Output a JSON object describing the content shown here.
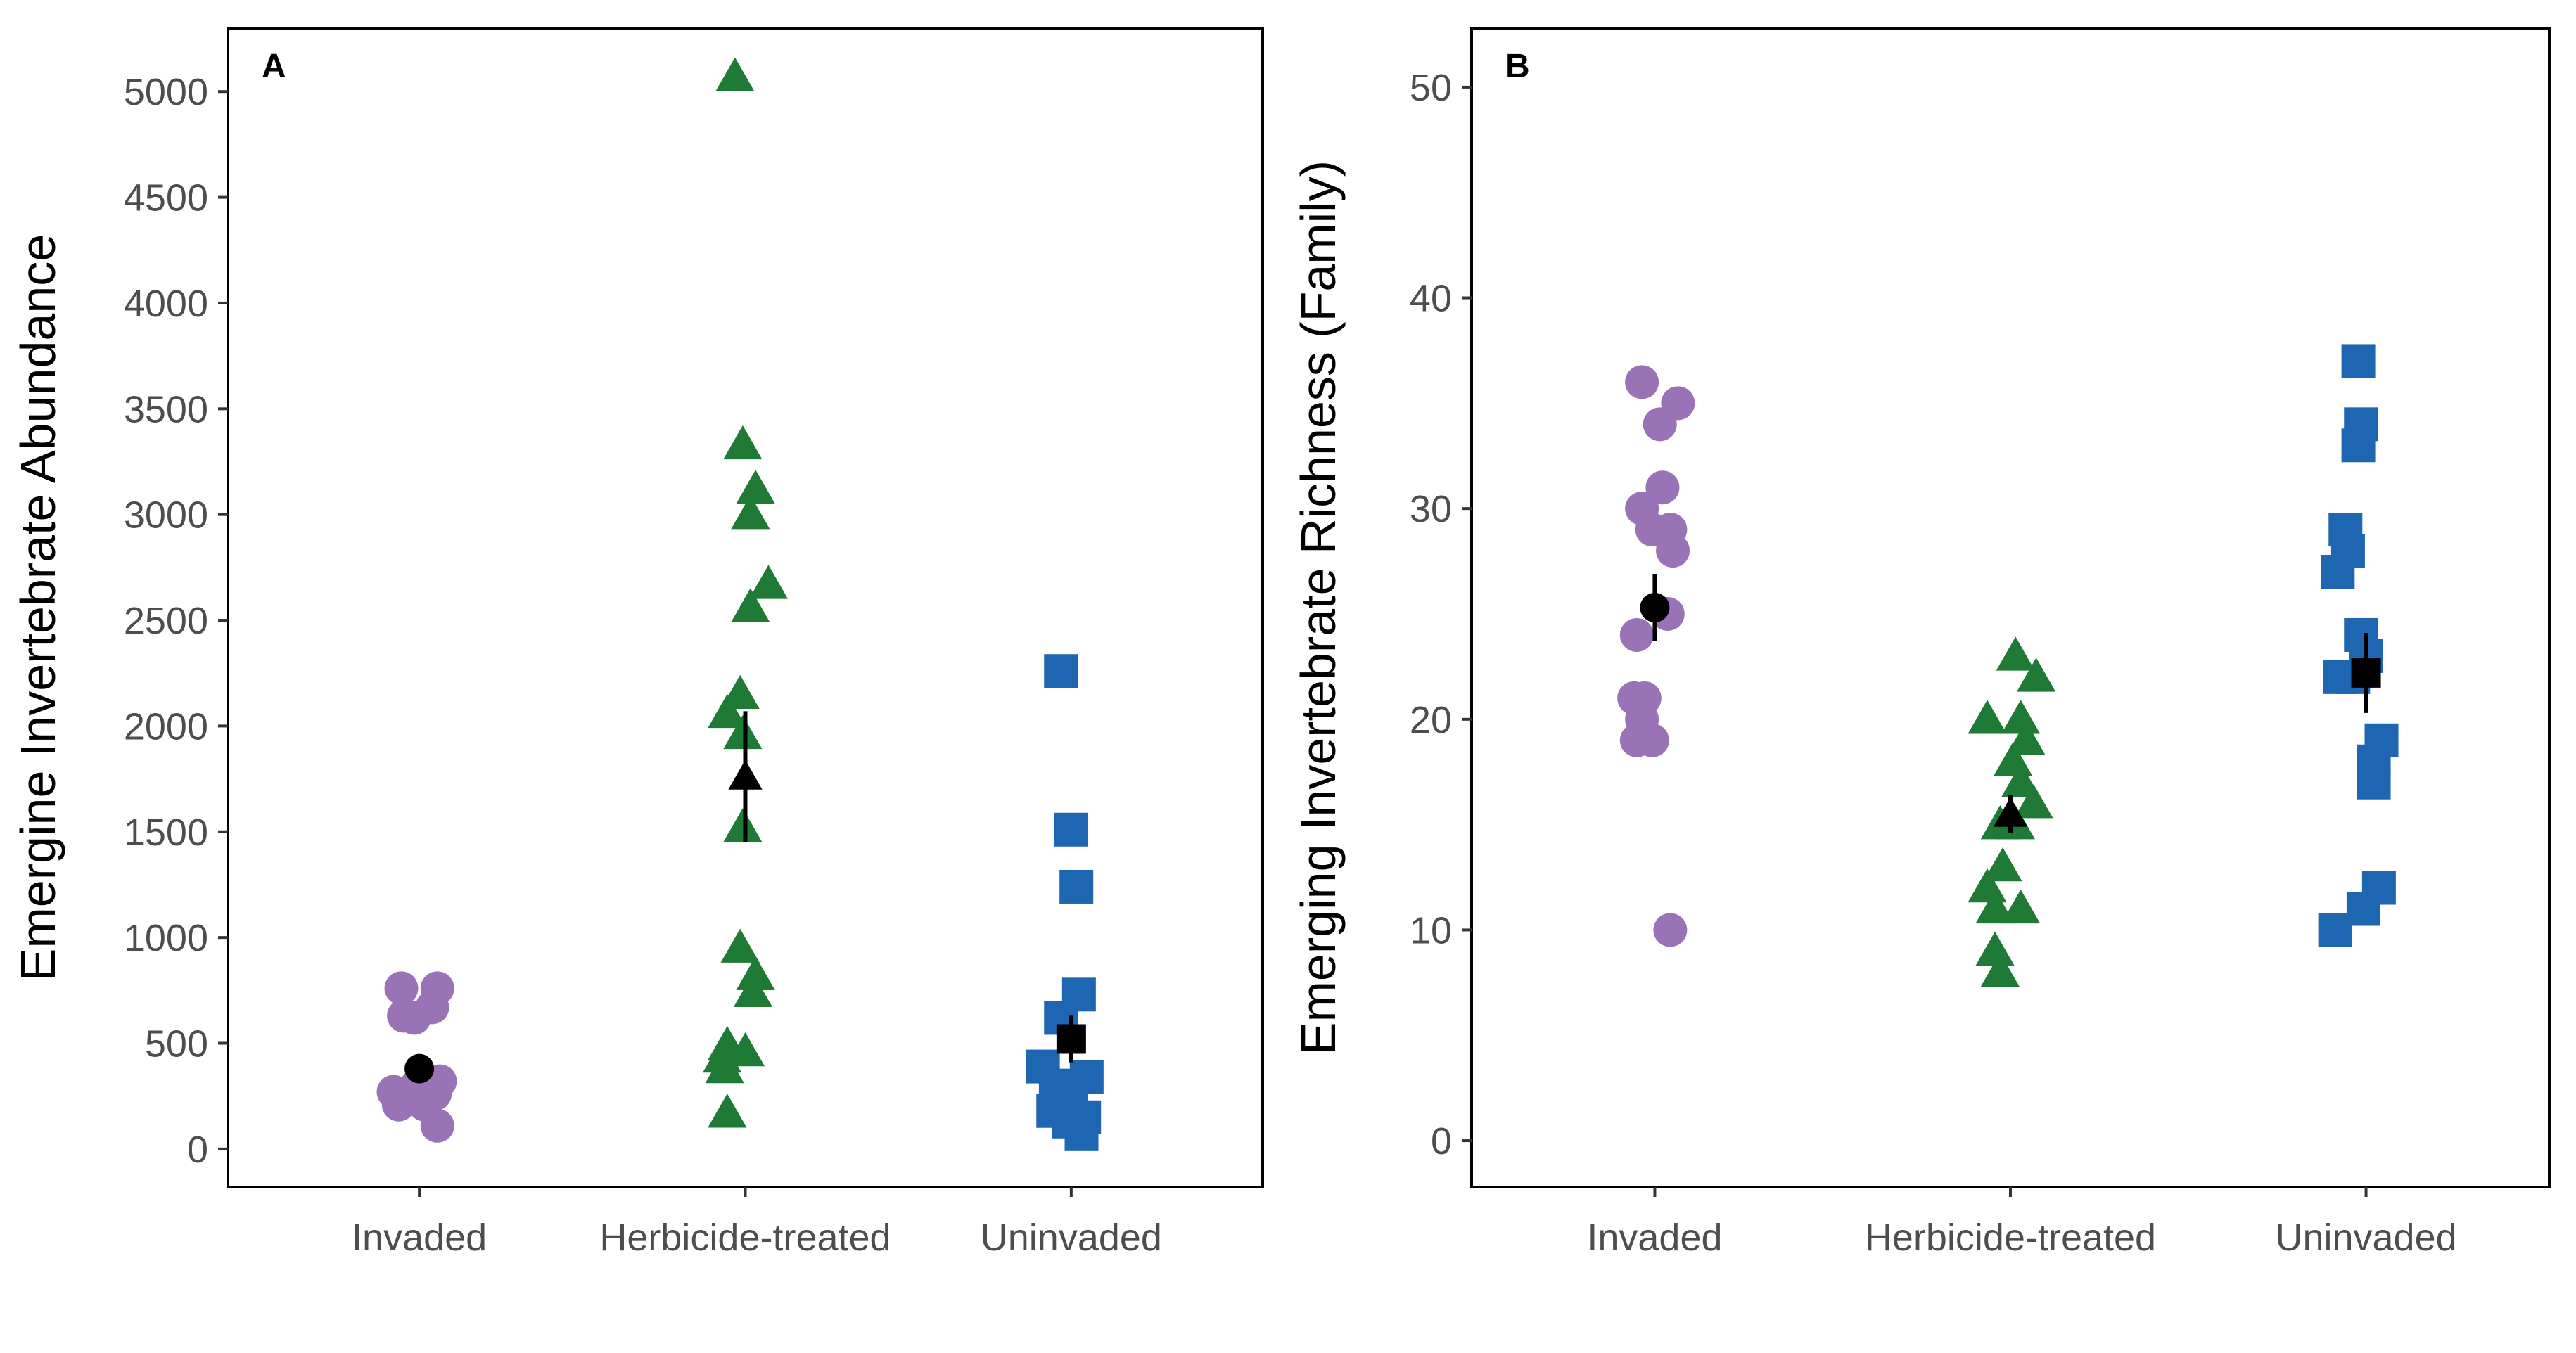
{
  "chart_data": [
    {
      "type": "scatter",
      "panel_label": "A",
      "xlabel": "",
      "ylabel": "Emergine Invertebrate Abundance",
      "ylim": [
        -180,
        5300
      ],
      "yticks": [
        0,
        500,
        1000,
        1500,
        2000,
        2500,
        3000,
        3500,
        4000,
        4500,
        5000
      ],
      "categories": [
        "Invaded",
        "Herbicide-treated",
        "Uninvaded"
      ],
      "grid": false,
      "series": [
        {
          "category": "Invaded",
          "shape": "circle",
          "color": "#9a73b6",
          "points": [
            {
              "x": -0.07,
              "y": 760
            },
            {
              "x": 0.07,
              "y": 760
            },
            {
              "x": 0.05,
              "y": 670
            },
            {
              "x": -0.06,
              "y": 630
            },
            {
              "x": -0.02,
              "y": 620
            },
            {
              "x": 0.08,
              "y": 320
            },
            {
              "x": -0.01,
              "y": 300
            },
            {
              "x": -0.1,
              "y": 270
            },
            {
              "x": 0.06,
              "y": 260
            },
            {
              "x": -0.08,
              "y": 210
            },
            {
              "x": 0.02,
              "y": 210
            },
            {
              "x": 0.07,
              "y": 110
            }
          ],
          "mean": 380,
          "se": 45
        },
        {
          "category": "Herbicide-treated",
          "shape": "triangle",
          "color": "#1e7a34",
          "points": [
            {
              "x": -0.04,
              "y": 5070
            },
            {
              "x": -0.01,
              "y": 3330
            },
            {
              "x": 0.04,
              "y": 3120
            },
            {
              "x": 0.02,
              "y": 3000
            },
            {
              "x": 0.09,
              "y": 2670
            },
            {
              "x": 0.02,
              "y": 2560
            },
            {
              "x": -0.02,
              "y": 2150
            },
            {
              "x": -0.07,
              "y": 2060
            },
            {
              "x": -0.01,
              "y": 1960
            },
            {
              "x": -0.01,
              "y": 1520
            },
            {
              "x": -0.02,
              "y": 950
            },
            {
              "x": 0.04,
              "y": 820
            },
            {
              "x": 0.03,
              "y": 740
            },
            {
              "x": -0.07,
              "y": 490
            },
            {
              "x": 0.0,
              "y": 460
            },
            {
              "x": -0.09,
              "y": 430
            },
            {
              "x": -0.08,
              "y": 380
            },
            {
              "x": -0.07,
              "y": 170
            }
          ],
          "mean": 1760,
          "se": 310
        },
        {
          "category": "Uninvaded",
          "shape": "square",
          "color": "#1f66b2",
          "points": [
            {
              "x": -0.04,
              "y": 2260
            },
            {
              "x": 0.0,
              "y": 1510
            },
            {
              "x": 0.02,
              "y": 1240
            },
            {
              "x": 0.03,
              "y": 730
            },
            {
              "x": -0.04,
              "y": 620
            },
            {
              "x": -0.11,
              "y": 390
            },
            {
              "x": 0.06,
              "y": 340
            },
            {
              "x": -0.06,
              "y": 300
            },
            {
              "x": 0.0,
              "y": 240
            },
            {
              "x": -0.07,
              "y": 180
            },
            {
              "x": 0.05,
              "y": 150
            },
            {
              "x": -0.01,
              "y": 130
            },
            {
              "x": 0.04,
              "y": 70
            }
          ],
          "mean": 520,
          "se": 110
        }
      ]
    },
    {
      "type": "scatter",
      "panel_label": "B",
      "xlabel": "",
      "ylabel": "Emerging Invertebrate Richness (Family)",
      "ylim": [
        -2.2,
        52.8
      ],
      "yticks": [
        0,
        10,
        20,
        30,
        40,
        50
      ],
      "categories": [
        "Invaded",
        "Herbicide-treated",
        "Uninvaded"
      ],
      "grid": false,
      "series": [
        {
          "category": "Invaded",
          "shape": "circle",
          "color": "#9a73b6",
          "points": [
            {
              "x": -0.05,
              "y": 36
            },
            {
              "x": 0.09,
              "y": 35
            },
            {
              "x": 0.02,
              "y": 34
            },
            {
              "x": 0.03,
              "y": 31
            },
            {
              "x": -0.05,
              "y": 30
            },
            {
              "x": 0.06,
              "y": 29
            },
            {
              "x": -0.01,
              "y": 29
            },
            {
              "x": 0.07,
              "y": 28
            },
            {
              "x": 0.05,
              "y": 25
            },
            {
              "x": -0.07,
              "y": 24
            },
            {
              "x": -0.08,
              "y": 21
            },
            {
              "x": -0.04,
              "y": 21
            },
            {
              "x": -0.05,
              "y": 20
            },
            {
              "x": -0.07,
              "y": 19
            },
            {
              "x": -0.01,
              "y": 19
            },
            {
              "x": 0.06,
              "y": 10
            }
          ],
          "mean": 25.3,
          "se": 1.6
        },
        {
          "category": "Herbicide-treated",
          "shape": "triangle",
          "color": "#1e7a34",
          "points": [
            {
              "x": 0.02,
              "y": 23
            },
            {
              "x": 0.1,
              "y": 22
            },
            {
              "x": -0.09,
              "y": 20
            },
            {
              "x": 0.04,
              "y": 20
            },
            {
              "x": 0.06,
              "y": 19
            },
            {
              "x": 0.01,
              "y": 18
            },
            {
              "x": 0.04,
              "y": 17
            },
            {
              "x": 0.09,
              "y": 16
            },
            {
              "x": -0.04,
              "y": 15
            },
            {
              "x": 0.02,
              "y": 15
            },
            {
              "x": -0.03,
              "y": 13
            },
            {
              "x": -0.09,
              "y": 12
            },
            {
              "x": -0.06,
              "y": 11
            },
            {
              "x": 0.04,
              "y": 11
            },
            {
              "x": -0.06,
              "y": 9
            },
            {
              "x": -0.04,
              "y": 8
            }
          ],
          "mean": 15.5,
          "se": 0.9
        },
        {
          "category": "Uninvaded",
          "shape": "square",
          "color": "#1f66b2",
          "points": [
            {
              "x": -0.03,
              "y": 37
            },
            {
              "x": -0.02,
              "y": 34
            },
            {
              "x": -0.03,
              "y": 33
            },
            {
              "x": -0.08,
              "y": 29
            },
            {
              "x": -0.07,
              "y": 28
            },
            {
              "x": -0.11,
              "y": 27
            },
            {
              "x": -0.02,
              "y": 24
            },
            {
              "x": 0.0,
              "y": 23
            },
            {
              "x": -0.1,
              "y": 22
            },
            {
              "x": -0.05,
              "y": 22
            },
            {
              "x": 0.06,
              "y": 19
            },
            {
              "x": 0.03,
              "y": 18
            },
            {
              "x": 0.03,
              "y": 17
            },
            {
              "x": 0.05,
              "y": 12
            },
            {
              "x": -0.01,
              "y": 11
            },
            {
              "x": -0.12,
              "y": 10
            }
          ],
          "mean": 22.2,
          "se": 1.9
        }
      ]
    }
  ]
}
